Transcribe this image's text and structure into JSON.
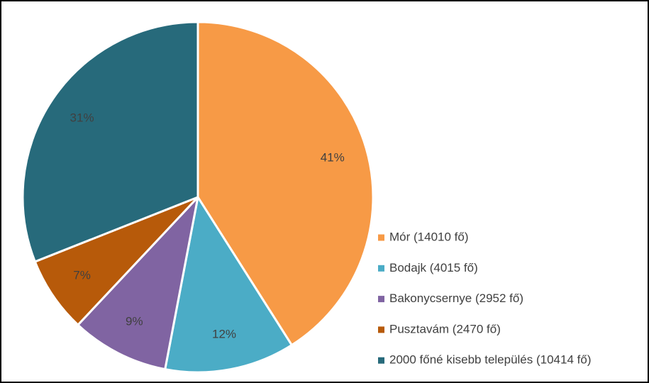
{
  "chart_data": {
    "type": "pie",
    "categories": [
      "Mór (14010 fő)",
      "Bodajk (4015 fő)",
      "Bakonycsernye (2952 fő)",
      "Pusztavám (2470 fő)",
      "2000 főné kisebb település (10414 fő)"
    ],
    "values": [
      41,
      12,
      9,
      7,
      31
    ],
    "value_labels": [
      "41%",
      "12%",
      "9%",
      "7%",
      "31%"
    ],
    "colors": [
      "#f79a46",
      "#4bacc6",
      "#8064a2",
      "#b75a0a",
      "#276a7b"
    ],
    "legend": "right"
  }
}
